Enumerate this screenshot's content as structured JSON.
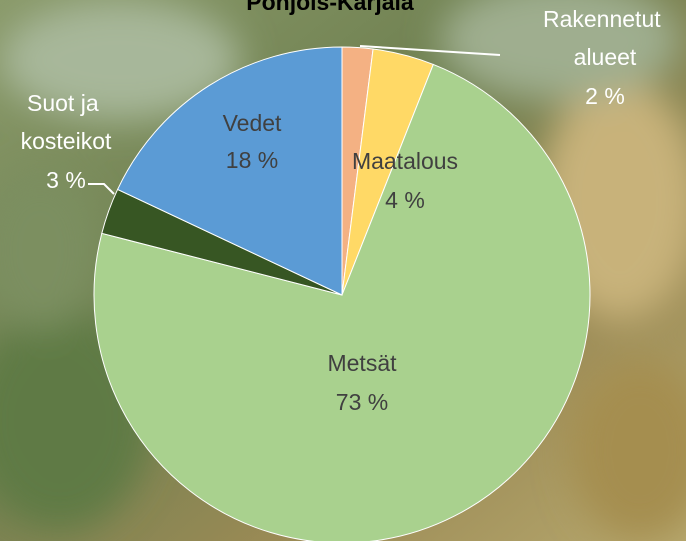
{
  "chart_data": {
    "type": "pie",
    "title": "Pohjois-Karjala",
    "categories": [
      "Rakennetut alueet",
      "Maatalous",
      "Metsät",
      "Suot ja kosteikot",
      "Vedet"
    ],
    "values": [
      2,
      4,
      73,
      3,
      18
    ],
    "value_labels": [
      "2 %",
      "4 %",
      "73 %",
      "3 %",
      "18 %"
    ],
    "colors": [
      "#f4b183",
      "#ffd966",
      "#a9d18e",
      "#375623",
      "#5b9bd5"
    ]
  }
}
